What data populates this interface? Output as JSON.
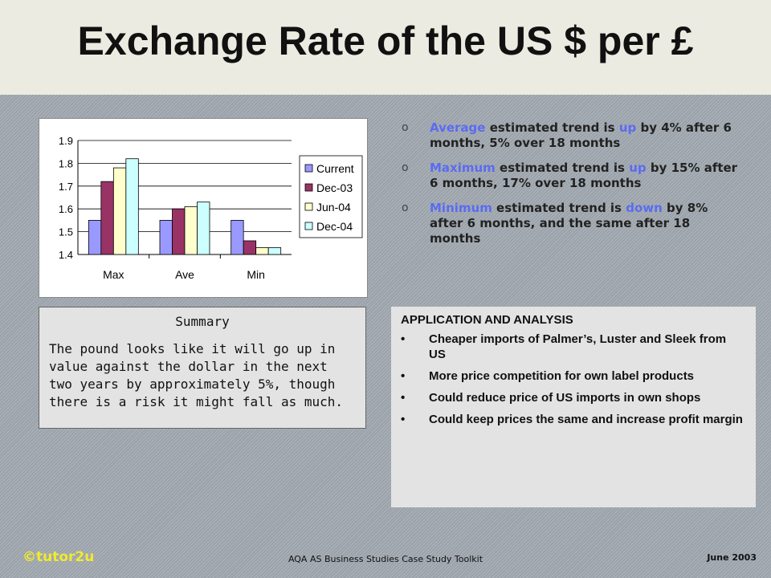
{
  "slide": {
    "title": "Exchange Rate of the US $ per £"
  },
  "chart_data": {
    "type": "bar",
    "categories": [
      "Max",
      "Ave",
      "Min"
    ],
    "series": [
      {
        "name": "Current",
        "color": "#9999ff",
        "values": [
          1.55,
          1.55,
          1.55
        ]
      },
      {
        "name": "Dec-03",
        "color": "#993366",
        "values": [
          1.72,
          1.6,
          1.46
        ]
      },
      {
        "name": "Jun-04",
        "color": "#ffffcc",
        "values": [
          1.78,
          1.61,
          1.43
        ]
      },
      {
        "name": "Dec-04",
        "color": "#ccffff",
        "values": [
          1.82,
          1.63,
          1.43
        ]
      }
    ],
    "yticks": [
      "1.4",
      "1.5",
      "1.6",
      "1.7",
      "1.8",
      "1.9"
    ],
    "ylim": [
      1.4,
      1.9
    ],
    "grid": true,
    "legend": "right"
  },
  "bullets": [
    {
      "hl1": "Average",
      "t1": " estimated trend is ",
      "hl2": "up",
      "t2": " by 4% after 6 months, 5% over 18 months"
    },
    {
      "hl1": "Maximum",
      "t1": " estimated trend is ",
      "hl2": "up",
      "t2": " by 15% after 6 months, 17% over 18 months"
    },
    {
      "hl1": "Minimum",
      "t1": " estimated trend is ",
      "hl2": "down",
      "t2": " by 8% after 6 months, and the same after 18 months"
    }
  ],
  "summary": {
    "heading": "Summary",
    "text": "The pound looks like it will go up in value against the dollar in the next two years by approximately 5%, though there is a risk it might fall as much."
  },
  "analysis": {
    "heading": "APPLICATION AND ANALYSIS",
    "items": [
      "Cheaper imports of Palmer’s, Luster and Sleek from US",
      "More price competition for own label products",
      "Could reduce price of US imports in own shops",
      "Could keep prices the same and increase profit margin"
    ]
  },
  "footer": {
    "brand": "©tutor2u",
    "center": "AQA AS Business Studies Case Study Toolkit",
    "date": "June 2003"
  }
}
